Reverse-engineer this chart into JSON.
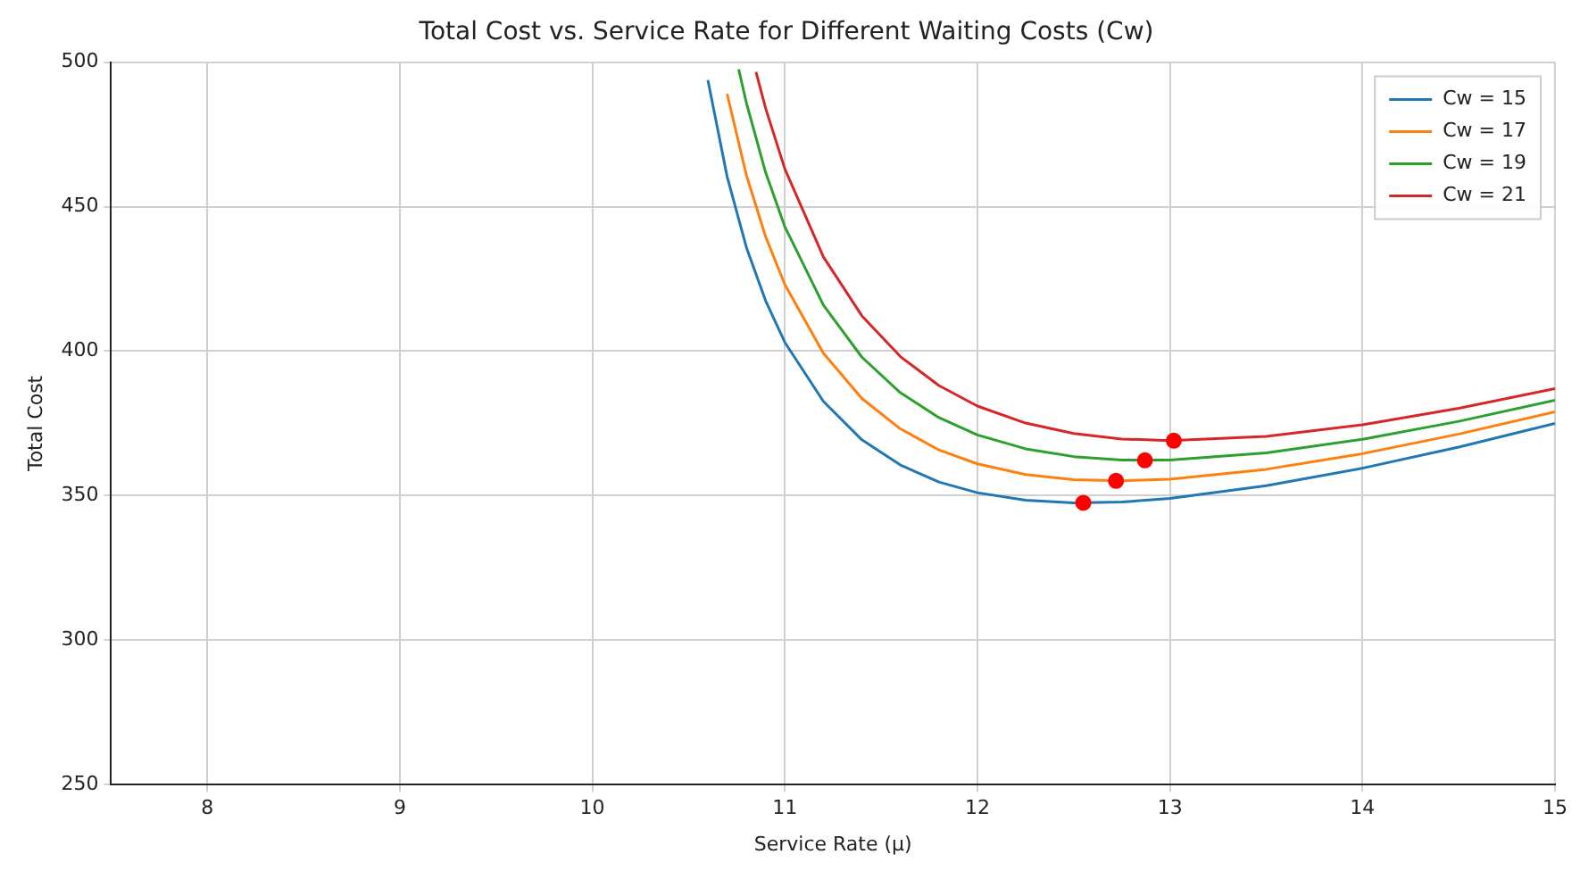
{
  "chart_data": {
    "type": "line",
    "title": "Total Cost vs. Service Rate for Different Waiting Costs (Cw)",
    "xlabel": "Service Rate (μ)",
    "ylabel": "Total Cost",
    "xlim": [
      7.5,
      15
    ],
    "xticks": [
      8,
      9,
      10,
      11,
      12,
      13,
      14,
      15
    ],
    "ylim": [
      250,
      500
    ],
    "yticks": [
      250,
      300,
      350,
      400,
      450,
      500
    ],
    "grid": true,
    "legend": "top right",
    "marker": "none",
    "line_style": "solid",
    "series": [
      {
        "name": "Cw = 15",
        "color": "#1f77b4",
        "x": [
          10.6,
          10.7,
          10.8,
          10.9,
          11,
          11.2,
          11.4,
          11.6,
          11.8,
          12,
          12.25,
          12.5,
          12.75,
          13,
          13.5,
          14,
          14.5,
          15
        ],
        "values": [
          493.8,
          460.4,
          435.9,
          417.4,
          403,
          382.6,
          369.3,
          360.6,
          354.7,
          351,
          348.4,
          347.5,
          347.8,
          349,
          353.4,
          359.5,
          366.8,
          375
        ]
      },
      {
        "name": "Cw = 17",
        "color": "#ff7f0e",
        "x": [
          10.7,
          10.8,
          10.9,
          11,
          11.2,
          11.4,
          11.6,
          11.8,
          12,
          12.25,
          12.5,
          12.75,
          13,
          13.5,
          14,
          14.5,
          15
        ],
        "values": [
          489,
          460.9,
          439.6,
          423,
          399.3,
          383.6,
          373.1,
          365.8,
          361,
          357.3,
          355.5,
          355.1,
          355.7,
          359.1,
          364.5,
          371.3,
          379
        ]
      },
      {
        "name": "Cw = 19",
        "color": "#2ca02c",
        "x": [
          10.76,
          10.8,
          10.9,
          11,
          11.2,
          11.4,
          11.6,
          11.8,
          12,
          12.25,
          12.5,
          12.75,
          13,
          13.5,
          14,
          14.5,
          15
        ],
        "values": [
          497.5,
          485.9,
          461.8,
          443,
          415.9,
          397.9,
          385.6,
          377,
          371,
          366.2,
          363.5,
          362.3,
          362.3,
          364.8,
          369.5,
          375.7,
          383
        ]
      },
      {
        "name": "Cw = 21",
        "color": "#d62728",
        "x": [
          10.85,
          10.9,
          11,
          11.2,
          11.4,
          11.6,
          11.8,
          12,
          12.25,
          12.5,
          12.75,
          13,
          13.5,
          14,
          14.5,
          15
        ],
        "values": [
          496.6,
          484,
          463,
          432.6,
          412.2,
          398.1,
          388.1,
          381,
          375.1,
          371.5,
          369.6,
          369,
          370.5,
          374.5,
          380.2,
          387
        ]
      },
      {
        "type": "scatter",
        "marker": "circle",
        "color": "#ff0000",
        "x": [
          12.55,
          12.72,
          12.87,
          13.02
        ],
        "values": [
          347.5,
          355.1,
          362.2,
          369
        ]
      }
    ]
  }
}
